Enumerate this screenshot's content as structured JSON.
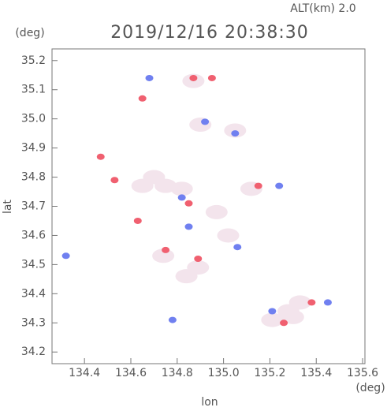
{
  "chart_data": {
    "type": "scatter",
    "title": "2019/12/16 20:38:30",
    "subtitle": "ALT(km) 2.0",
    "y_unit": "(deg)",
    "x_unit": "(deg)",
    "x_label": "lon",
    "y_label": "lat",
    "xlim": [
      134.26,
      135.61
    ],
    "ylim": [
      34.16,
      35.24
    ],
    "xticks": [
      134.4,
      134.6,
      134.8,
      {
        "value": 135,
        "label": "135.0"
      },
      135.2,
      135.4,
      135.6
    ],
    "yticks": [
      34.2,
      34.3,
      34.4,
      34.5,
      34.6,
      34.7,
      34.8,
      34.9,
      {
        "value": 35,
        "label": "35.0"
      },
      35.1,
      35.2
    ],
    "series": [
      {
        "color": "#f3e4ec",
        "x": [
          134.75,
          134.82,
          134.65,
          135.02,
          134.89,
          134.84,
          135.28,
          135.21,
          135.33,
          135.05,
          134.9,
          134.74,
          135.12,
          134.87,
          134.7,
          134.97,
          135.3
        ],
        "values": [
          34.77,
          34.76,
          34.77,
          34.6,
          34.49,
          34.46,
          34.34,
          34.31,
          34.37,
          34.96,
          34.98,
          34.53,
          34.76,
          35.13,
          34.8,
          34.68,
          34.32
        ]
      },
      {
        "color": "#f06070",
        "x": [
          134.87,
          134.95,
          134.65,
          134.53,
          134.85,
          134.89,
          135.26,
          135.38,
          134.47,
          134.63,
          134.75,
          135.15
        ],
        "values": [
          35.14,
          35.14,
          35.07,
          34.79,
          34.71,
          34.52,
          34.3,
          34.37,
          34.87,
          34.65,
          34.55,
          34.77
        ]
      },
      {
        "color": "#7080f0",
        "x": [
          134.68,
          134.82,
          135.06,
          135.45,
          135.21,
          134.92,
          134.85,
          134.78,
          134.32,
          135.05,
          135.24
        ],
        "values": [
          35.14,
          34.73,
          34.56,
          34.37,
          34.34,
          34.99,
          34.63,
          34.31,
          34.53,
          34.95,
          34.77
        ]
      }
    ]
  }
}
